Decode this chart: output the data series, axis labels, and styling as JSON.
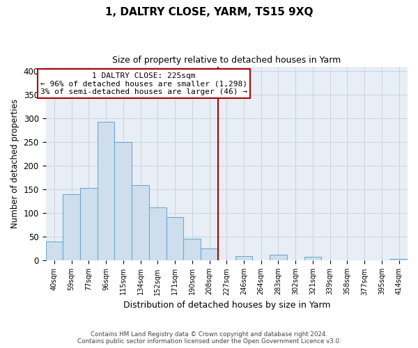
{
  "title": "1, DALTRY CLOSE, YARM, TS15 9XQ",
  "subtitle": "Size of property relative to detached houses in Yarm",
  "xlabel": "Distribution of detached houses by size in Yarm",
  "ylabel": "Number of detached properties",
  "footer_line1": "Contains HM Land Registry data © Crown copyright and database right 2024.",
  "footer_line2": "Contains public sector information licensed under the Open Government Licence v3.0.",
  "bin_labels": [
    "40sqm",
    "59sqm",
    "77sqm",
    "96sqm",
    "115sqm",
    "134sqm",
    "152sqm",
    "171sqm",
    "190sqm",
    "208sqm",
    "227sqm",
    "246sqm",
    "264sqm",
    "283sqm",
    "302sqm",
    "321sqm",
    "339sqm",
    "358sqm",
    "377sqm",
    "395sqm",
    "414sqm"
  ],
  "bar_heights": [
    40,
    140,
    153,
    293,
    251,
    160,
    113,
    92,
    46,
    25,
    0,
    10,
    0,
    13,
    0,
    8,
    0,
    0,
    0,
    0,
    3
  ],
  "bar_color": "#cfdeed",
  "bar_edge_color": "#6aaad4",
  "vline_color": "#aa0000",
  "annotation_title": "1 DALTRY CLOSE: 225sqm",
  "annotation_line1": "← 96% of detached houses are smaller (1,298)",
  "annotation_line2": "3% of semi-detached houses are larger (46) →",
  "annotation_box_facecolor": "#ffffff",
  "annotation_box_edgecolor": "#aa0000",
  "ylim": [
    0,
    410
  ],
  "yticks": [
    0,
    50,
    100,
    150,
    200,
    250,
    300,
    350,
    400
  ],
  "axes_facecolor": "#e8eef5",
  "background_color": "#ffffff",
  "grid_color": "#c8d4e0",
  "vline_index": 10
}
